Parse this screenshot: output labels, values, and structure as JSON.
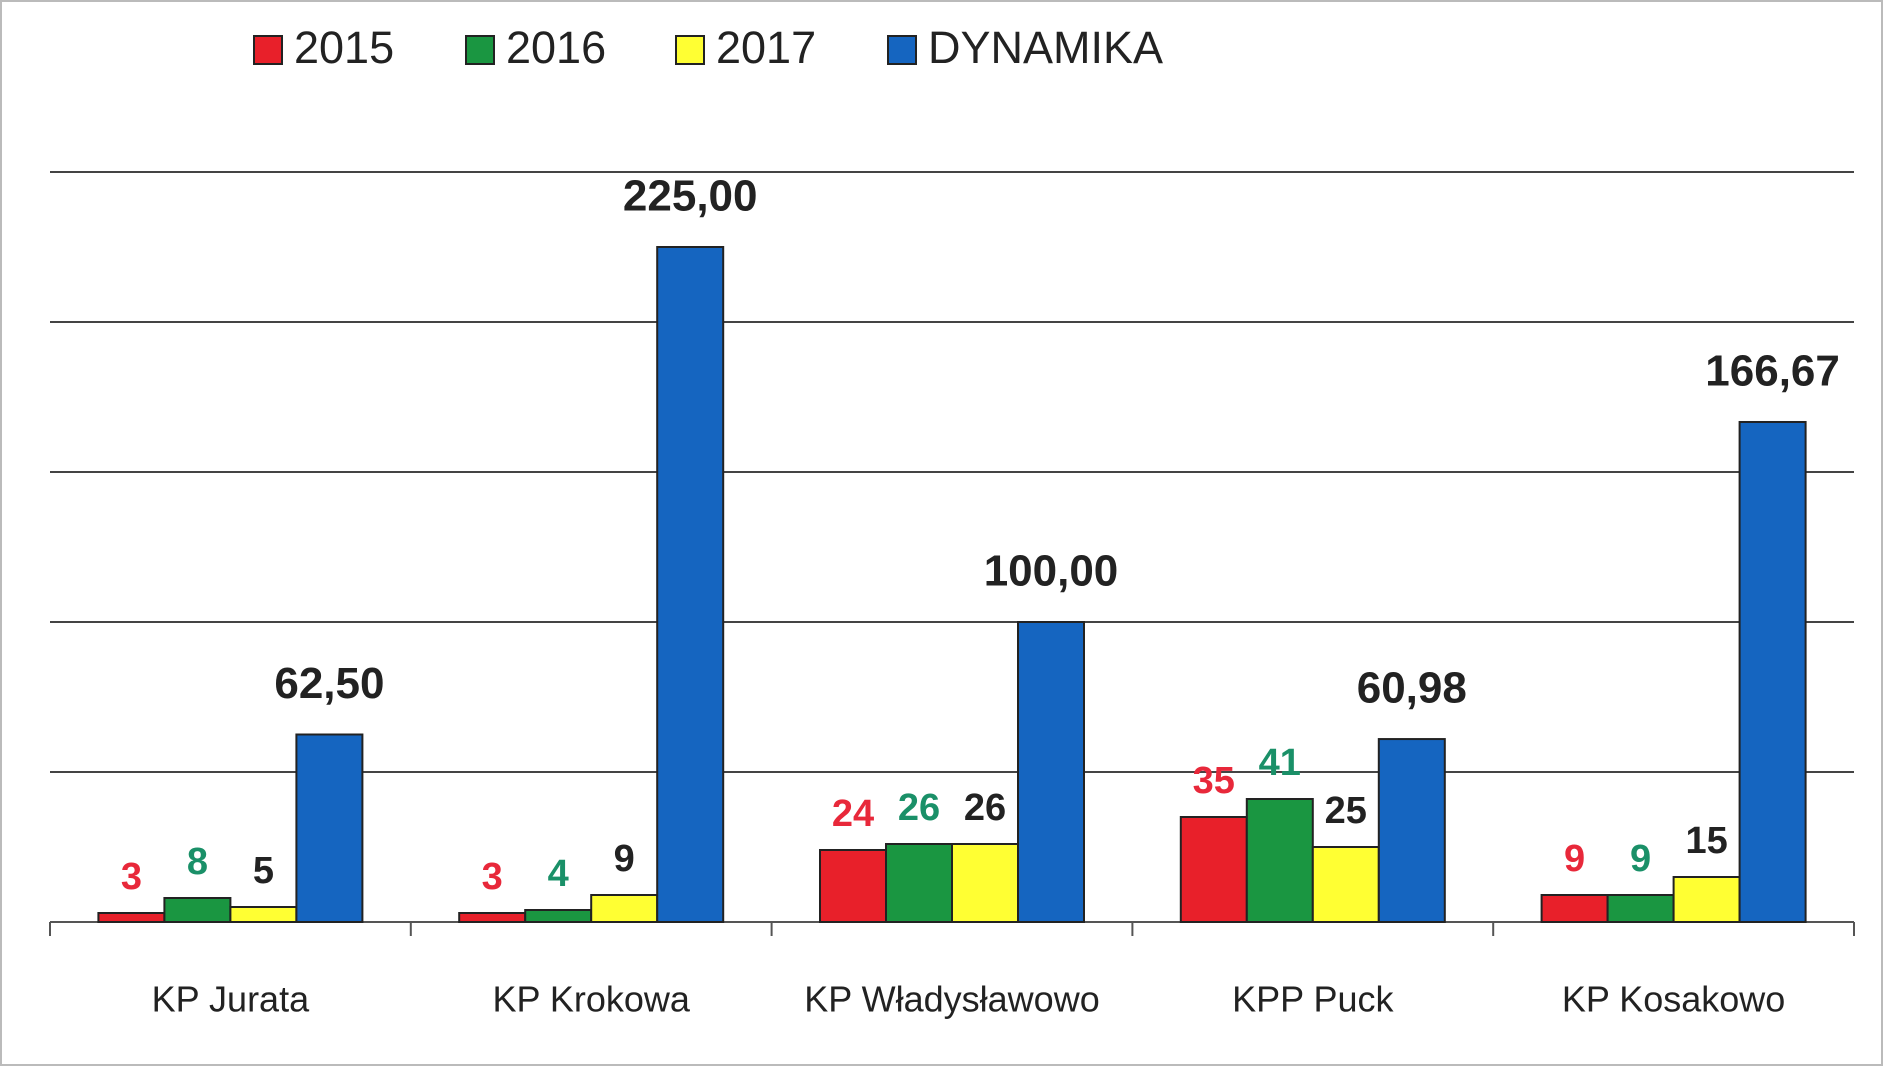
{
  "chart_data": {
    "type": "bar",
    "categories": [
      "KP Jurata",
      "KP Krokowa",
      "KP Władysławowo",
      "KPP Puck",
      "KP Kosakowo"
    ],
    "series": [
      {
        "name": "2015",
        "color": "#e8202a",
        "label_color": "#e8283a",
        "values": [
          3,
          3,
          24,
          35,
          9
        ]
      },
      {
        "name": "2016",
        "color": "#1a9641",
        "label_color": "#1a9068",
        "values": [
          8,
          4,
          26,
          41,
          9
        ]
      },
      {
        "name": "2017",
        "color": "#ffff33",
        "label_color": "#222222",
        "values": [
          5,
          9,
          26,
          25,
          15
        ]
      },
      {
        "name": "DYNAMIKA",
        "color": "#1565c0",
        "label_color": "#222222",
        "values": [
          62.5,
          225,
          100,
          60.98,
          166.67
        ],
        "value_labels": [
          "62,50",
          "225,00",
          "100,00",
          "60,98",
          "166,67"
        ]
      }
    ],
    "ylim": [
      0,
      250
    ],
    "yticks": [
      0,
      50,
      100,
      150,
      200,
      250
    ],
    "grid": true,
    "legend": "top"
  }
}
